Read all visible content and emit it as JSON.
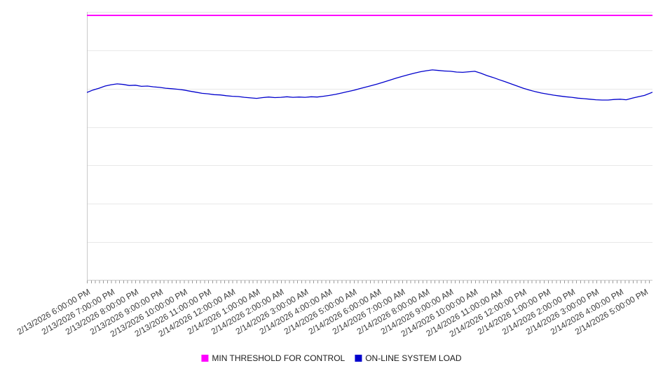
{
  "chart_data": {
    "type": "line",
    "title": "",
    "grid": true,
    "legend_position": "bottom-center",
    "x_axis": {
      "hours_span": 23.33,
      "minor_ticks_per_hour": 6,
      "labels": [
        "2/13/2026 6:00:00 PM",
        "2/13/2026 7:00:00 PM",
        "2/13/2026 8:00:00 PM",
        "2/13/2026 9:00:00 PM",
        "2/13/2026 10:00:00 PM",
        "2/13/2026 11:00:00 PM",
        "2/14/2026 12:00:00 AM",
        "2/14/2026 1:00:00 AM",
        "2/14/2026 2:00:00 AM",
        "2/14/2026 3:00:00 AM",
        "2/14/2026 4:00:00 AM",
        "2/14/2026 5:00:00 AM",
        "2/14/2026 6:00:00 AM",
        "2/14/2026 7:00:00 AM",
        "2/14/2026 8:00:00 AM",
        "2/14/2026 9:00:00 AM",
        "2/14/2026 10:00:00 AM",
        "2/14/2026 11:00:00 AM",
        "2/14/2026 12:00:00 PM",
        "2/14/2026 1:00:00 PM",
        "2/14/2026 2:00:00 PM",
        "2/14/2026 3:00:00 PM",
        "2/14/2026 4:00:00 PM",
        "2/14/2026 5:00:00 PM"
      ]
    },
    "y_axis": {
      "min": 0,
      "max": 100,
      "gridline_divisions": 7,
      "labels_visible": false
    },
    "series": [
      {
        "name": "MIN THRESHOLD FOR CONTROL",
        "color": "#ff00ff",
        "style": "constant",
        "value": 98.7
      },
      {
        "name": "ON-LINE SYSTEM LOAD",
        "color": "#0000cd",
        "style": "line",
        "points": [
          [
            0,
            70.0
          ],
          [
            0.25,
            70.9
          ],
          [
            0.5,
            71.6
          ],
          [
            0.75,
            72.4
          ],
          [
            1,
            72.9
          ],
          [
            1.25,
            73.2
          ],
          [
            1.5,
            73.0
          ],
          [
            1.75,
            72.6
          ],
          [
            2,
            72.7
          ],
          [
            2.25,
            72.3
          ],
          [
            2.5,
            72.4
          ],
          [
            2.75,
            72.1
          ],
          [
            3,
            71.9
          ],
          [
            3.25,
            71.6
          ],
          [
            3.5,
            71.4
          ],
          [
            3.75,
            71.2
          ],
          [
            4,
            70.9
          ],
          [
            4.25,
            70.5
          ],
          [
            4.5,
            70.1
          ],
          [
            4.75,
            69.7
          ],
          [
            5,
            69.5
          ],
          [
            5.25,
            69.2
          ],
          [
            5.5,
            69.1
          ],
          [
            5.75,
            68.8
          ],
          [
            6,
            68.6
          ],
          [
            6.25,
            68.5
          ],
          [
            6.5,
            68.2
          ],
          [
            6.75,
            68.0
          ],
          [
            7,
            67.8
          ],
          [
            7.25,
            68.1
          ],
          [
            7.5,
            68.3
          ],
          [
            7.75,
            68.1
          ],
          [
            8,
            68.2
          ],
          [
            8.25,
            68.4
          ],
          [
            8.5,
            68.2
          ],
          [
            8.75,
            68.3
          ],
          [
            9,
            68.2
          ],
          [
            9.25,
            68.4
          ],
          [
            9.5,
            68.3
          ],
          [
            9.75,
            68.6
          ],
          [
            10,
            68.9
          ],
          [
            10.25,
            69.3
          ],
          [
            10.5,
            69.8
          ],
          [
            10.75,
            70.3
          ],
          [
            11,
            70.8
          ],
          [
            11.25,
            71.4
          ],
          [
            11.5,
            72.0
          ],
          [
            11.75,
            72.6
          ],
          [
            12,
            73.2
          ],
          [
            12.25,
            73.9
          ],
          [
            12.5,
            74.6
          ],
          [
            12.75,
            75.3
          ],
          [
            13,
            76.0
          ],
          [
            13.25,
            76.6
          ],
          [
            13.5,
            77.2
          ],
          [
            13.75,
            77.7
          ],
          [
            14,
            78.1
          ],
          [
            14.25,
            78.4
          ],
          [
            14.5,
            78.2
          ],
          [
            14.75,
            78.0
          ],
          [
            15,
            77.9
          ],
          [
            15.25,
            77.6
          ],
          [
            15.5,
            77.5
          ],
          [
            15.75,
            77.7
          ],
          [
            16,
            77.9
          ],
          [
            16.25,
            77.2
          ],
          [
            16.5,
            76.3
          ],
          [
            16.75,
            75.6
          ],
          [
            17,
            74.8
          ],
          [
            17.25,
            74.0
          ],
          [
            17.5,
            73.2
          ],
          [
            17.75,
            72.4
          ],
          [
            18,
            71.6
          ],
          [
            18.25,
            70.9
          ],
          [
            18.5,
            70.3
          ],
          [
            18.75,
            69.8
          ],
          [
            19,
            69.4
          ],
          [
            19.25,
            69.0
          ],
          [
            19.5,
            68.7
          ],
          [
            19.75,
            68.4
          ],
          [
            20,
            68.2
          ],
          [
            20.25,
            67.9
          ],
          [
            20.5,
            67.7
          ],
          [
            20.75,
            67.5
          ],
          [
            21,
            67.3
          ],
          [
            21.25,
            67.2
          ],
          [
            21.5,
            67.2
          ],
          [
            21.75,
            67.4
          ],
          [
            22,
            67.5
          ],
          [
            22.25,
            67.3
          ],
          [
            22.5,
            67.9
          ],
          [
            22.75,
            68.4
          ],
          [
            23,
            68.9
          ],
          [
            23.33,
            70.1
          ]
        ]
      }
    ],
    "colors": {
      "gridline": "#e8e8e8",
      "axis": "#c9c9c9",
      "tick": "#9a9a9a"
    }
  }
}
